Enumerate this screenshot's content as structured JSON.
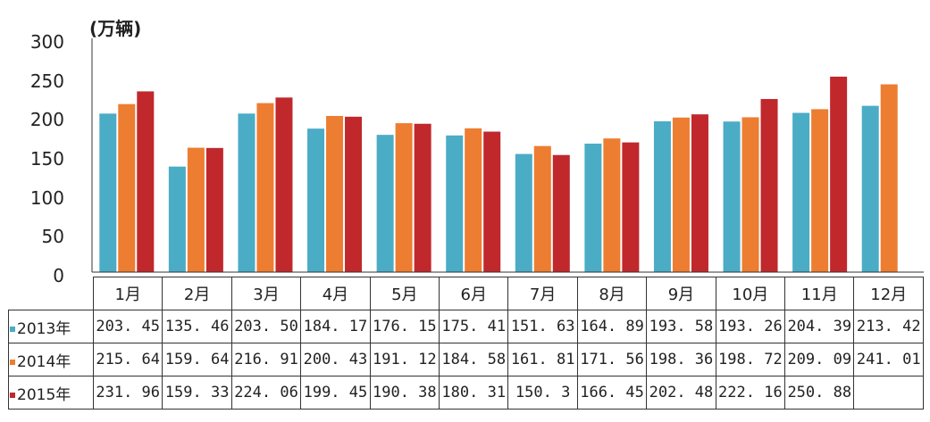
{
  "chart_data": {
    "type": "bar",
    "ylabel": "(万辆)",
    "ylim": [
      0,
      300
    ],
    "yticks": [
      0,
      50,
      100,
      150,
      200,
      250,
      300
    ],
    "grid": false,
    "legend": "in data table",
    "categories": [
      "1月",
      "2月",
      "3月",
      "4月",
      "5月",
      "6月",
      "7月",
      "8月",
      "9月",
      "10月",
      "11月",
      "12月"
    ],
    "series": [
      {
        "name": "2013年",
        "color": "#4bacc6",
        "values": [
          203.45,
          135.46,
          203.5,
          184.17,
          176.15,
          175.41,
          151.63,
          164.89,
          193.58,
          193.26,
          204.39,
          213.42
        ],
        "labels": [
          "203. 45",
          "135. 46",
          "203. 50",
          "184. 17",
          "176. 15",
          "175. 41",
          "151. 63",
          "164. 89",
          "193. 58",
          "193. 26",
          "204. 39",
          "213. 42"
        ]
      },
      {
        "name": "2014年",
        "color": "#ed7d31",
        "values": [
          215.64,
          159.64,
          216.91,
          200.43,
          191.12,
          184.58,
          161.81,
          171.56,
          198.36,
          198.72,
          209.09,
          241.01
        ],
        "labels": [
          "215. 64",
          "159. 64",
          "216. 91",
          "200. 43",
          "191. 12",
          "184. 58",
          "161. 81",
          "171. 56",
          "198. 36",
          "198. 72",
          "209. 09",
          "241. 01"
        ]
      },
      {
        "name": "2015年",
        "color": "#c0282c",
        "values": [
          231.96,
          159.33,
          224.06,
          199.45,
          190.38,
          180.31,
          150.3,
          166.45,
          202.48,
          222.16,
          250.88,
          null
        ],
        "labels": [
          "231. 96",
          "159. 33",
          "224. 06",
          "199. 45",
          "190. 38",
          "180. 31",
          "150. 3",
          "166. 45",
          "202. 48",
          "222. 16",
          "250. 88",
          ""
        ]
      }
    ]
  }
}
